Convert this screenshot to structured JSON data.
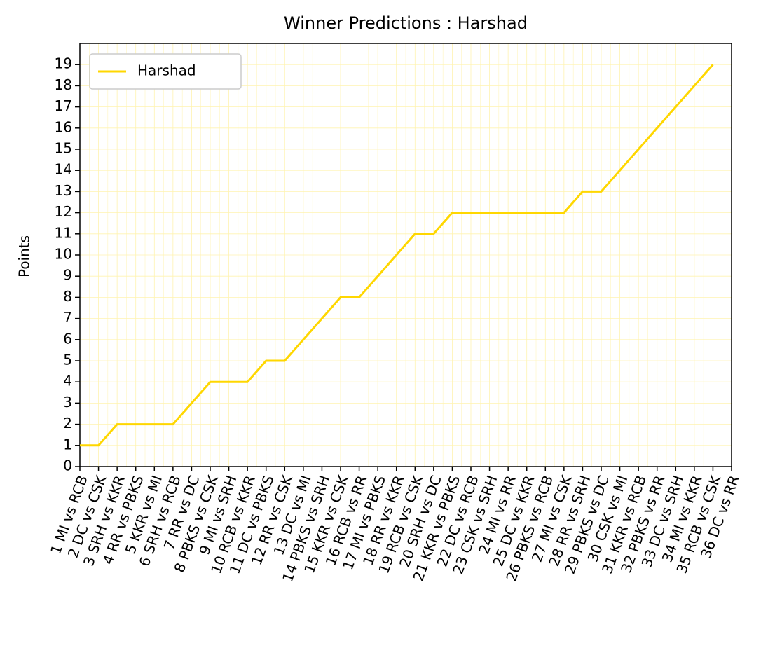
{
  "chart_data": {
    "type": "line",
    "title": "Winner Predictions : Harshad",
    "ylabel": "Points",
    "categories": [
      "1 MI vs RCB",
      "2 DC vs CSK",
      "3 SRH vs KKR",
      "4 RR vs PBKS",
      "5 KKR vs MI",
      "6 SRH vs RCB",
      "7 RR vs DC",
      "8 PBKS vs CSK",
      "9 MI vs SRH",
      "10 RCB vs KKR",
      "11 DC vs PBKS",
      "12 RR vs CSK",
      "13 DC vs MI",
      "14 PBKS vs SRH",
      "15 KKR vs CSK",
      "16 RCB vs RR",
      "17 MI vs PBKS",
      "18 RR vs KKR",
      "19 RCB vs CSK",
      "20 SRH vs DC",
      "21 KKR vs PBKS",
      "22 DC vs RCB",
      "23 CSK vs SRH",
      "24 MI vs RR",
      "25 DC vs KKR",
      "26 PBKS vs RCB",
      "27 MI vs CSK",
      "28 RR vs SRH",
      "29 PBKS vs DC",
      "30 CSK vs MI",
      "31 KKR vs RCB",
      "32 PBKS vs RR",
      "33 DC vs SRH",
      "34 MI vs KKR",
      "35 RCB vs CSK",
      "36 DC vs RR"
    ],
    "series": [
      {
        "name": "Harshad",
        "color": "#ffd700",
        "values": [
          1,
          1,
          2,
          2,
          2,
          2,
          3,
          4,
          4,
          4,
          5,
          5,
          6,
          7,
          8,
          8,
          9,
          10,
          11,
          11,
          12,
          12,
          12,
          12,
          12,
          12,
          12,
          13,
          13,
          14,
          15,
          16,
          17,
          18,
          19,
          null
        ]
      }
    ],
    "ylim": [
      0,
      20
    ],
    "yticks": [
      0,
      1,
      2,
      3,
      4,
      5,
      6,
      7,
      8,
      9,
      10,
      11,
      12,
      13,
      14,
      15,
      16,
      17,
      18,
      19
    ],
    "grid": true,
    "legend": "upper left"
  }
}
